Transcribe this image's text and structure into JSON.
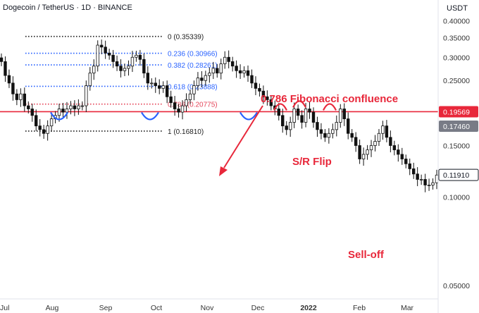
{
  "header": {
    "symbol_title": "Dogecoin / TetherUS · 1D · BINANCE",
    "currency_label": "USDT"
  },
  "colors": {
    "candle": "#111111",
    "fib_black": "#222222",
    "fib_blue": "#2962ff",
    "fib_786": "#e5465a",
    "sr_line": "#e8273a",
    "annotation": "#e8273a",
    "axis_text": "#333333",
    "price_tag_red": "#e8273a",
    "price_tag_gray": "#787b86",
    "price_tag_dark": "#ffffff"
  },
  "chart_data": {
    "type": "candlestick",
    "x_axis": {
      "labels": [
        "Jul",
        "Aug",
        "Sep",
        "Oct",
        "Nov",
        "Dec",
        "2022",
        "Feb",
        "Mar"
      ]
    },
    "y_axis": {
      "position": "right",
      "scale": "log",
      "ticks": [
        "0.40000",
        "0.35000",
        "0.30000",
        "0.25000",
        "0.20000",
        "0.15000",
        "0.10000",
        "0.05000"
      ],
      "range": [
        0.045,
        0.45
      ]
    },
    "price_tags": [
      {
        "value": 0.19569,
        "label": "0.19569",
        "style": "red"
      },
      {
        "value": 0.1746,
        "label": "0.17460",
        "style": "gray"
      },
      {
        "value": 0.1191,
        "label": "0.11910",
        "style": "outline"
      }
    ],
    "fibonacci": [
      {
        "value": 0.35339,
        "label": "0 (0.35339)",
        "style": "black"
      },
      {
        "value": 0.30966,
        "label": "0.236 (0.30966)",
        "style": "blue"
      },
      {
        "value": 0.28261,
        "label": "0.382 (0.28261)",
        "style": "blue"
      },
      {
        "value": 0.23888,
        "label": "0.618 (0.23888)",
        "style": "blue"
      },
      {
        "value": 0.20775,
        "label": "0.786 (0.20775)",
        "style": "red"
      },
      {
        "value": 0.1681,
        "label": "1 (0.16810)",
        "style": "black"
      }
    ],
    "support_resistance": {
      "value": 0.19569
    },
    "annotations": [
      {
        "text": "0.786 Fibonacci confluence"
      },
      {
        "text": "S/R Flip"
      },
      {
        "text": "Sell-off"
      }
    ],
    "series": [
      {
        "values": [
          0.29,
          0.26,
          0.245,
          0.225,
          0.215,
          0.225,
          0.205,
          0.2,
          0.19,
          0.175,
          0.17,
          0.165,
          0.175,
          0.185,
          0.19,
          0.2,
          0.195,
          0.2,
          0.205,
          0.2,
          0.205,
          0.205,
          0.24,
          0.265,
          0.28,
          0.33,
          0.325,
          0.31,
          0.305,
          0.29,
          0.28,
          0.27,
          0.275,
          0.28,
          0.3,
          0.305,
          0.295,
          0.265,
          0.245,
          0.245,
          0.24,
          0.235,
          0.24,
          0.22,
          0.21,
          0.2,
          0.195,
          0.205,
          0.215,
          0.225,
          0.24,
          0.255,
          0.25,
          0.26,
          0.265,
          0.275,
          0.265,
          0.285,
          0.3,
          0.29,
          0.28,
          0.27,
          0.265,
          0.27,
          0.26,
          0.245,
          0.235,
          0.23,
          0.22,
          0.215,
          0.205,
          0.2,
          0.19,
          0.175,
          0.17,
          0.18,
          0.2,
          0.19,
          0.18,
          0.2,
          0.195,
          0.18,
          0.17,
          0.165,
          0.16,
          0.165,
          0.17,
          0.18,
          0.2,
          0.185,
          0.165,
          0.16,
          0.15,
          0.135,
          0.14,
          0.145,
          0.15,
          0.155,
          0.165,
          0.175,
          0.16,
          0.15,
          0.145,
          0.14,
          0.135,
          0.13,
          0.125,
          0.12,
          0.115,
          0.115,
          0.11,
          0.11,
          0.112,
          0.119
        ]
      }
    ]
  }
}
